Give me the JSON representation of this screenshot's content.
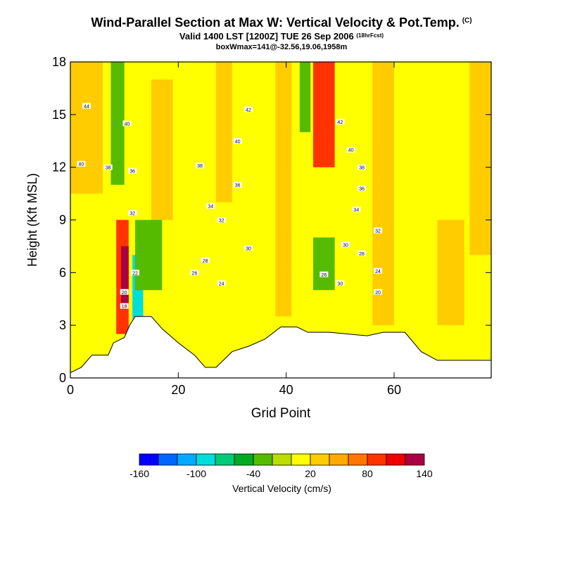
{
  "header": {
    "title": "Wind-Parallel Section at Max W: Vertical Velocity & Pot.Temp.",
    "copyright": "(C)",
    "valid": "Valid 1400 LST [1200Z] TUE 26 Sep 2006",
    "fcst": "(18hrFcst)",
    "boxinfo": "boxWmax=141@-32.56,19.06,1958m"
  },
  "chart_data": {
    "type": "heatmap",
    "title": "Wind-Parallel Section at Max W: Vertical Velocity & Pot.Temp.",
    "xlabel": "Grid Point",
    "ylabel": "Height (Kft MSL)",
    "xlim": [
      0,
      78
    ],
    "ylim": [
      0,
      18
    ],
    "xticks": [
      "0",
      "20",
      "40",
      "60"
    ],
    "yticks": [
      "0",
      "3",
      "6",
      "9",
      "12",
      "15",
      "18"
    ],
    "colorbar": {
      "label": "Vertical Velocity (cm/s)",
      "tick_labels": [
        "-160",
        "-100",
        "-40",
        "20",
        "80",
        "140"
      ],
      "colors": [
        "#0000ff",
        "#0066ff",
        "#00aaff",
        "#00dddd",
        "#00cc77",
        "#00aa22",
        "#55bb00",
        "#bbdd00",
        "#ffff00",
        "#ffcc00",
        "#ffaa00",
        "#ff7700",
        "#ff3300",
        "#ee0000",
        "#aa0044"
      ]
    },
    "background_w": 10,
    "w_cells": [
      {
        "x0": 0,
        "x1": 6,
        "y0": 10.5,
        "y1": 18,
        "v": 20
      },
      {
        "x0": 7.5,
        "x1": 10,
        "y0": 11,
        "y1": 18,
        "v": -40
      },
      {
        "x0": 8.5,
        "x1": 10.8,
        "y0": 2.5,
        "y1": 9,
        "v": 80
      },
      {
        "x0": 9.4,
        "x1": 10.8,
        "y0": 4,
        "y1": 7.5,
        "v": 140
      },
      {
        "x0": 11.5,
        "x1": 13.5,
        "y0": 3,
        "y1": 7,
        "v": -100
      },
      {
        "x0": 12,
        "x1": 17,
        "y0": 5,
        "y1": 9,
        "v": -40
      },
      {
        "x0": 15,
        "x1": 19,
        "y0": 9,
        "y1": 17,
        "v": 20
      },
      {
        "x0": 27,
        "x1": 30,
        "y0": 10,
        "y1": 18,
        "v": 20
      },
      {
        "x0": 38,
        "x1": 41,
        "y0": 3.5,
        "y1": 18,
        "v": 20
      },
      {
        "x0": 42.5,
        "x1": 44.5,
        "y0": 14,
        "y1": 18,
        "v": -40
      },
      {
        "x0": 45,
        "x1": 49,
        "y0": 12,
        "y1": 18,
        "v": 80
      },
      {
        "x0": 45,
        "x1": 49,
        "y0": 5,
        "y1": 8,
        "v": -40
      },
      {
        "x0": 56,
        "x1": 60,
        "y0": 3,
        "y1": 18,
        "v": 20
      },
      {
        "x0": 68,
        "x1": 73,
        "y0": 3,
        "y1": 9,
        "v": 20
      },
      {
        "x0": 74,
        "x1": 78,
        "y0": 7,
        "y1": 18,
        "v": 20
      }
    ],
    "terrain": [
      [
        0,
        0.3
      ],
      [
        2,
        0.6
      ],
      [
        4,
        1.3
      ],
      [
        7,
        1.3
      ],
      [
        8,
        2.0
      ],
      [
        10,
        2.3
      ],
      [
        11,
        3.0
      ],
      [
        12,
        3.5
      ],
      [
        15,
        3.5
      ],
      [
        17,
        2.8
      ],
      [
        20,
        2.0
      ],
      [
        23,
        1.3
      ],
      [
        25,
        0.6
      ],
      [
        27,
        0.6
      ],
      [
        30,
        1.5
      ],
      [
        33,
        1.8
      ],
      [
        36,
        2.2
      ],
      [
        39,
        2.9
      ],
      [
        42,
        2.9
      ],
      [
        44,
        2.6
      ],
      [
        48,
        2.6
      ],
      [
        55,
        2.4
      ],
      [
        58,
        2.6
      ],
      [
        62,
        2.6
      ],
      [
        65,
        1.5
      ],
      [
        68,
        1.0
      ],
      [
        78,
        1.0
      ]
    ],
    "contour_labels": [
      {
        "x": 3,
        "y": 15.5,
        "text": "44"
      },
      {
        "x": 10.5,
        "y": 14.5,
        "text": "40"
      },
      {
        "x": 2,
        "y": 12.2,
        "text": "40"
      },
      {
        "x": 7,
        "y": 12,
        "text": "38"
      },
      {
        "x": 11.5,
        "y": 11.8,
        "text": "36"
      },
      {
        "x": 11.5,
        "y": 9.4,
        "text": "32"
      },
      {
        "x": 33,
        "y": 15.3,
        "text": "42"
      },
      {
        "x": 31,
        "y": 13.5,
        "text": "40"
      },
      {
        "x": 24,
        "y": 12.1,
        "text": "38"
      },
      {
        "x": 31,
        "y": 11,
        "text": "36"
      },
      {
        "x": 26,
        "y": 9.8,
        "text": "34"
      },
      {
        "x": 28,
        "y": 9,
        "text": "32"
      },
      {
        "x": 33,
        "y": 7.4,
        "text": "30"
      },
      {
        "x": 25,
        "y": 6.7,
        "text": "28"
      },
      {
        "x": 23,
        "y": 6,
        "text": "26"
      },
      {
        "x": 28,
        "y": 5.4,
        "text": "24"
      },
      {
        "x": 50,
        "y": 14.6,
        "text": "42"
      },
      {
        "x": 52,
        "y": 13,
        "text": "40"
      },
      {
        "x": 54,
        "y": 12,
        "text": "38"
      },
      {
        "x": 54,
        "y": 10.8,
        "text": "36"
      },
      {
        "x": 53,
        "y": 9.6,
        "text": "34"
      },
      {
        "x": 57,
        "y": 8.4,
        "text": "32"
      },
      {
        "x": 51,
        "y": 7.6,
        "text": "30"
      },
      {
        "x": 54,
        "y": 7.1,
        "text": "28"
      },
      {
        "x": 47,
        "y": 5.9,
        "text": "26"
      },
      {
        "x": 50,
        "y": 5.4,
        "text": "30"
      },
      {
        "x": 57,
        "y": 6.1,
        "text": "24"
      },
      {
        "x": 57,
        "y": 4.9,
        "text": "20"
      },
      {
        "x": 12,
        "y": 6,
        "text": "22"
      },
      {
        "x": 10,
        "y": 4.9,
        "text": "20"
      },
      {
        "x": 10,
        "y": 4.1,
        "text": "18"
      }
    ]
  }
}
